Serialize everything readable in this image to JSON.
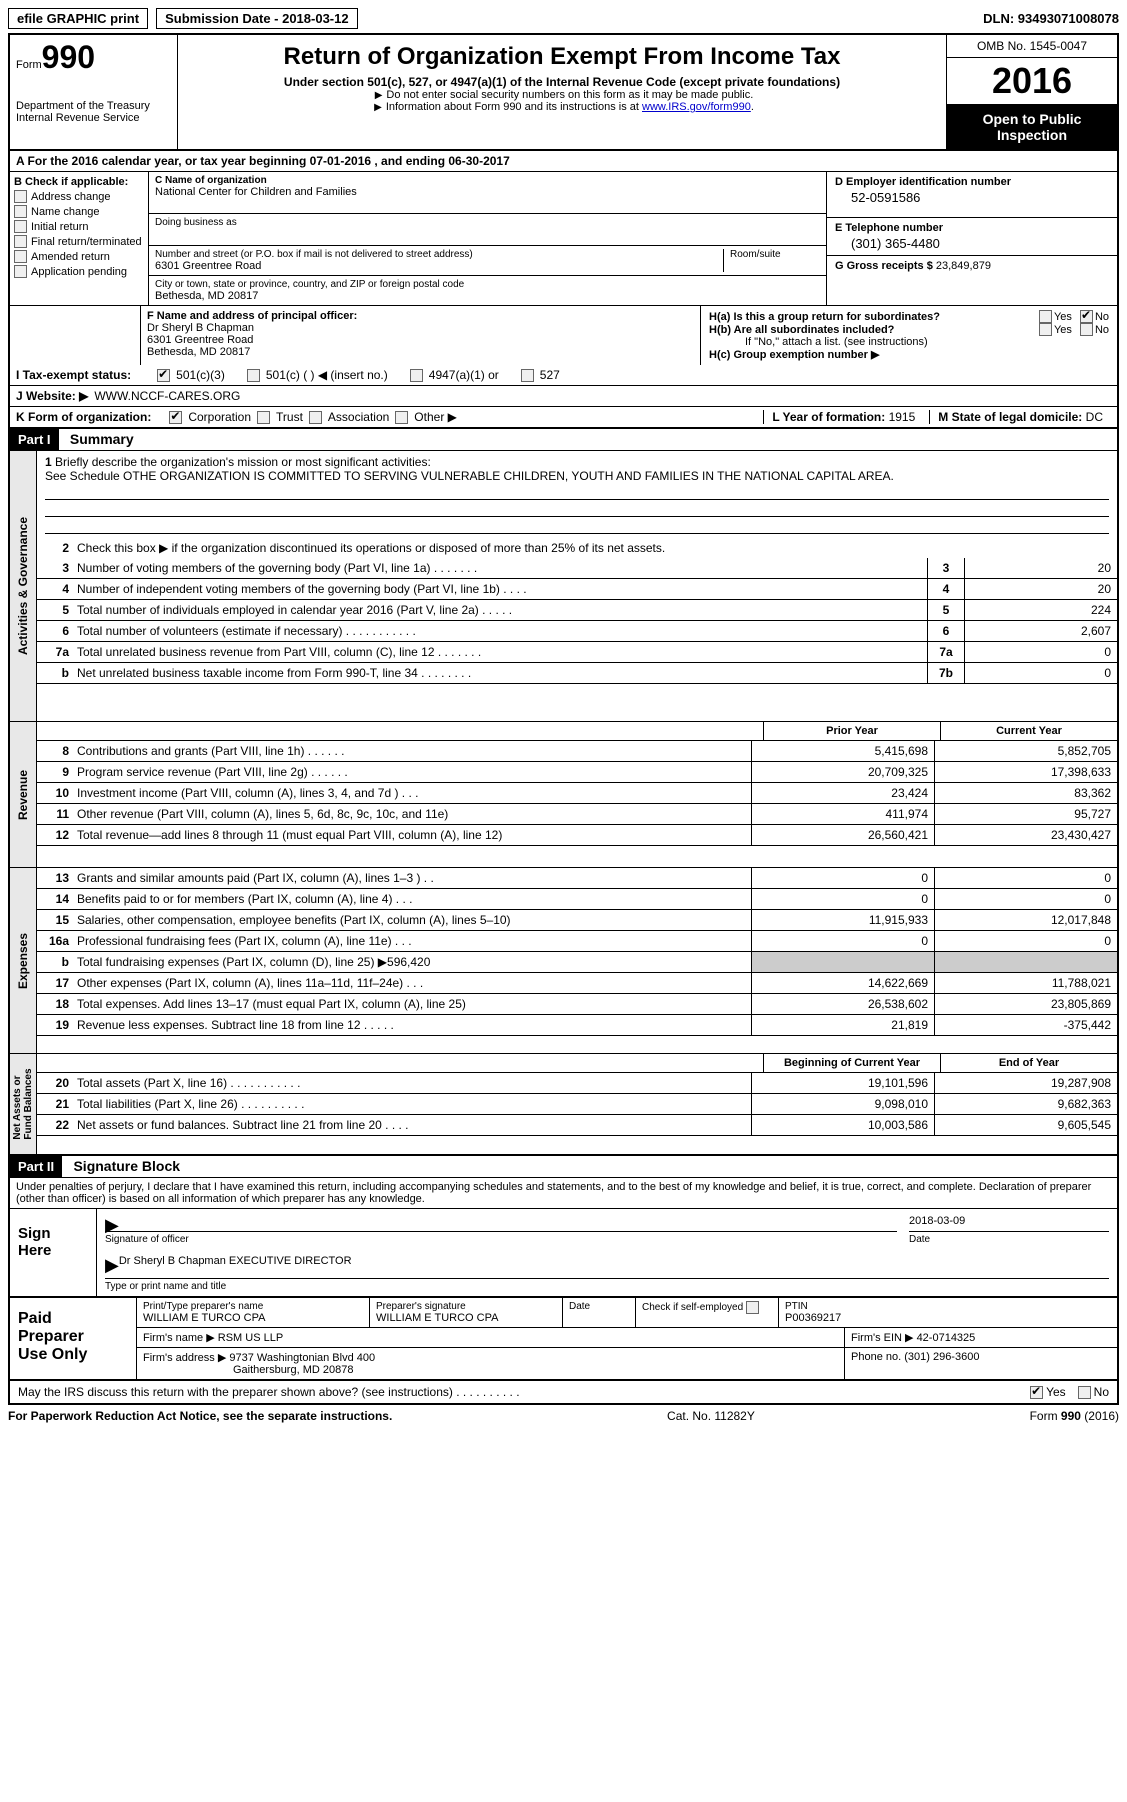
{
  "topbar": {
    "efile": "efile GRAPHIC print",
    "submission": "Submission Date - 2018-03-12",
    "dln": "DLN: 93493071008078"
  },
  "header": {
    "form_label": "Form",
    "form_number": "990",
    "dept": "Department of the Treasury",
    "irs": "Internal Revenue Service",
    "title": "Return of Organization Exempt From Income Tax",
    "subtitle": "Under section 501(c), 527, or 4947(a)(1) of the Internal Revenue Code (except private foundations)",
    "note1": "Do not enter social security numbers on this form as it may be made public.",
    "note2_pre": "Information about Form 990 and its instructions is at ",
    "note2_link": "www.IRS.gov/form990",
    "omb": "OMB No. 1545-0047",
    "year": "2016",
    "open1": "Open to Public",
    "open2": "Inspection"
  },
  "sectionA": "A  For the 2016 calendar year, or tax year beginning 07-01-2016   , and ending 06-30-2017",
  "colB": {
    "label": "B Check if applicable:",
    "items": [
      "Address change",
      "Name change",
      "Initial return",
      "Final return/terminated",
      "Amended return",
      "Application pending"
    ]
  },
  "colC": {
    "name_label": "C Name of organization",
    "name": "National Center for Children and Families",
    "dba_label": "Doing business as",
    "addr_label": "Number and street (or P.O. box if mail is not delivered to street address)",
    "room_label": "Room/suite",
    "addr": "6301 Greentree Road",
    "city_label": "City or town, state or province, country, and ZIP or foreign postal code",
    "city": "Bethesda, MD  20817"
  },
  "colD": {
    "ein_label": "D Employer identification number",
    "ein": "52-0591586",
    "phone_label": "E Telephone number",
    "phone": "(301) 365-4480",
    "gross_label": "G Gross receipts $",
    "gross": "23,849,879"
  },
  "officer": {
    "label": "F  Name and address of principal officer:",
    "name": "Dr Sheryl B Chapman",
    "addr1": "6301 Greentree Road",
    "addr2": "Bethesda, MD  20817"
  },
  "sectionH": {
    "ha": "H(a)  Is this a group return for subordinates?",
    "hb": "H(b)  Are all subordinates included?",
    "hb_note": "If \"No,\" attach a list. (see instructions)",
    "hc": "H(c)  Group exemption number ▶",
    "yes": "Yes",
    "no": "No"
  },
  "taxExempt": {
    "label": "I  Tax-exempt status:",
    "c3": "501(c)(3)",
    "c": "501(c) (   ) ◀ (insert no.)",
    "a1": "4947(a)(1) or",
    "s527": "527"
  },
  "website": {
    "label": "J  Website: ▶",
    "value": "WWW.NCCF-CARES.ORG"
  },
  "orgForm": {
    "label": "K Form of organization:",
    "corp": "Corporation",
    "trust": "Trust",
    "assoc": "Association",
    "other": "Other ▶",
    "year_label": "L Year of formation:",
    "year": "1915",
    "state_label": "M State of legal domicile:",
    "state": "DC"
  },
  "part1": {
    "header": "Part I",
    "title": "Summary"
  },
  "summary": {
    "line1_label": "Briefly describe the organization's mission or most significant activities:",
    "line1_text": "See Schedule OTHE ORGANIZATION IS COMMITTED TO SERVING VULNERABLE CHILDREN, YOUTH AND FAMILIES IN THE NATIONAL CAPITAL AREA.",
    "line2": "Check this box ▶       if the organization discontinued its operations or disposed of more than 25% of its net assets.",
    "lines_gov": [
      {
        "n": "3",
        "t": "Number of voting members of the governing body (Part VI, line 1a)   .   .   .   .   .   .   .",
        "b": "3",
        "v": "20"
      },
      {
        "n": "4",
        "t": "Number of independent voting members of the governing body (Part VI, line 1b)   .   .   .   .",
        "b": "4",
        "v": "20"
      },
      {
        "n": "5",
        "t": "Total number of individuals employed in calendar year 2016 (Part V, line 2a)   .   .   .   .   .",
        "b": "5",
        "v": "224"
      },
      {
        "n": "6",
        "t": "Total number of volunteers (estimate if necessary)   .   .   .   .   .   .   .   .   .   .   .",
        "b": "6",
        "v": "2,607"
      },
      {
        "n": "7a",
        "t": "Total unrelated business revenue from Part VIII, column (C), line 12   .   .   .   .   .   .   .",
        "b": "7a",
        "v": "0"
      },
      {
        "n": "b",
        "t": "Net unrelated business taxable income from Form 990-T, line 34   .   .   .   .   .   .   .   .",
        "b": "7b",
        "v": "0"
      }
    ],
    "prior_year": "Prior Year",
    "current_year": "Current Year",
    "revenue": [
      {
        "n": "8",
        "t": "Contributions and grants (Part VIII, line 1h)   .   .   .   .   .   .",
        "p": "5,415,698",
        "c": "5,852,705"
      },
      {
        "n": "9",
        "t": "Program service revenue (Part VIII, line 2g)   .   .   .   .   .   .",
        "p": "20,709,325",
        "c": "17,398,633"
      },
      {
        "n": "10",
        "t": "Investment income (Part VIII, column (A), lines 3, 4, and 7d )   .   .   .",
        "p": "23,424",
        "c": "83,362"
      },
      {
        "n": "11",
        "t": "Other revenue (Part VIII, column (A), lines 5, 6d, 8c, 9c, 10c, and 11e)",
        "p": "411,974",
        "c": "95,727"
      },
      {
        "n": "12",
        "t": "Total revenue—add lines 8 through 11 (must equal Part VIII, column (A), line 12)",
        "p": "26,560,421",
        "c": "23,430,427"
      }
    ],
    "expenses": [
      {
        "n": "13",
        "t": "Grants and similar amounts paid (Part IX, column (A), lines 1–3 )   .   .",
        "p": "0",
        "c": "0"
      },
      {
        "n": "14",
        "t": "Benefits paid to or for members (Part IX, column (A), line 4)   .   .   .",
        "p": "0",
        "c": "0"
      },
      {
        "n": "15",
        "t": "Salaries, other compensation, employee benefits (Part IX, column (A), lines 5–10)",
        "p": "11,915,933",
        "c": "12,017,848"
      },
      {
        "n": "16a",
        "t": "Professional fundraising fees (Part IX, column (A), line 11e)   .   .   .",
        "p": "0",
        "c": "0"
      }
    ],
    "line16b": {
      "n": "b",
      "t": "Total fundraising expenses (Part IX, column (D), line 25) ▶596,420"
    },
    "expenses2": [
      {
        "n": "17",
        "t": "Other expenses (Part IX, column (A), lines 11a–11d, 11f–24e)   .   .   .",
        "p": "14,622,669",
        "c": "11,788,021"
      },
      {
        "n": "18",
        "t": "Total expenses. Add lines 13–17 (must equal Part IX, column (A), line 25)",
        "p": "26,538,602",
        "c": "23,805,869"
      },
      {
        "n": "19",
        "t": "Revenue less expenses. Subtract line 18 from line 12   .   .   .   .   .",
        "p": "21,819",
        "c": "-375,442"
      }
    ],
    "begin_year": "Beginning of Current Year",
    "end_year": "End of Year",
    "netassets": [
      {
        "n": "20",
        "t": "Total assets (Part X, line 16)   .   .   .   .   .   .   .   .   .   .   .",
        "p": "19,101,596",
        "c": "19,287,908"
      },
      {
        "n": "21",
        "t": "Total liabilities (Part X, line 26)   .   .   .   .   .   .   .   .   .   .",
        "p": "9,098,010",
        "c": "9,682,363"
      },
      {
        "n": "22",
        "t": "Net assets or fund balances. Subtract line 21 from line 20   .   .   .   .",
        "p": "10,003,586",
        "c": "9,605,545"
      }
    ]
  },
  "part2": {
    "header": "Part II",
    "title": "Signature Block",
    "declaration": "Under penalties of perjury, I declare that I have examined this return, including accompanying schedules and statements, and to the best of my knowledge and belief, it is true, correct, and complete. Declaration of preparer (other than officer) is based on all information of which preparer has any knowledge."
  },
  "sign": {
    "label1": "Sign",
    "label2": "Here",
    "sig_officer": "Signature of officer",
    "date_label": "Date",
    "date": "2018-03-09",
    "name": "Dr Sheryl B Chapman  EXECUTIVE DIRECTOR",
    "name_label": "Type or print name and title"
  },
  "preparer": {
    "label1": "Paid",
    "label2": "Preparer",
    "label3": "Use Only",
    "name_label": "Print/Type preparer's name",
    "name": "WILLIAM E TURCO CPA",
    "sig_label": "Preparer's signature",
    "sig": "WILLIAM E TURCO CPA",
    "date_label": "Date",
    "check_label": "Check         if self-employed",
    "ptin_label": "PTIN",
    "ptin": "P00369217",
    "firm_label": "Firm's name     ▶",
    "firm": "RSM US LLP",
    "ein_label": "Firm's EIN ▶",
    "ein": "42-0714325",
    "addr_label": "Firm's address ▶",
    "addr1": "9737 Washingtonian Blvd 400",
    "addr2": "Gaithersburg, MD  20878",
    "phone_label": "Phone no.",
    "phone": "(301) 296-3600"
  },
  "discuss": {
    "text": "May the IRS discuss this return with the preparer shown above? (see instructions)   .   .   .   .   .   .   .   .   .   .",
    "yes": "Yes",
    "no": "No"
  },
  "footer": {
    "left": "For Paperwork Reduction Act Notice, see the separate instructions.",
    "cat": "Cat. No. 11282Y",
    "form": "Form 990 (2016)"
  }
}
